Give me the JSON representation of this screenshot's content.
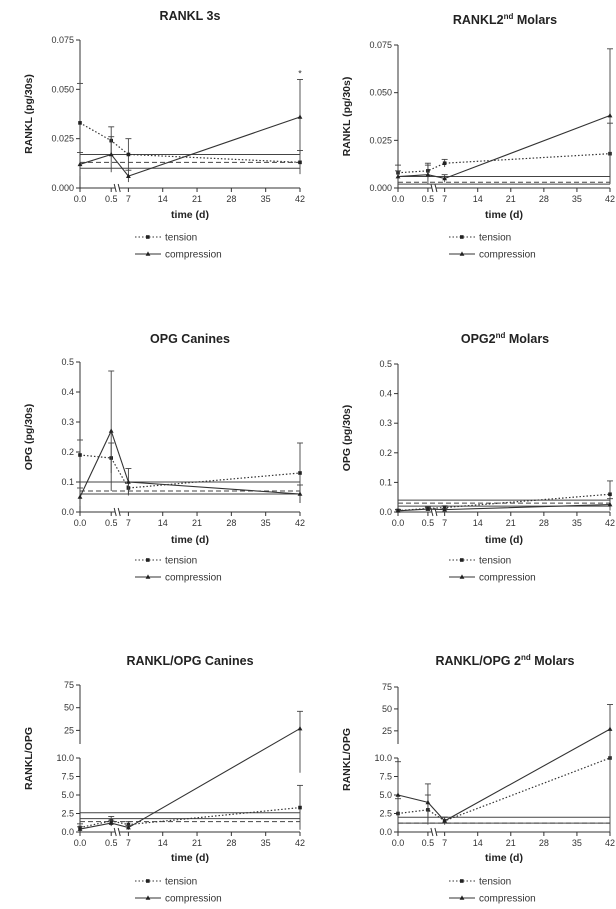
{
  "chart_data": [
    {
      "type": "line",
      "title": "RANKL 3s",
      "xlabel": "time (d)",
      "ylabel": "RANKL (pg/30s)",
      "ylim": [
        0,
        0.075
      ],
      "yticks": [
        "0.000",
        "0.025",
        "0.050",
        "0.075"
      ],
      "x": [
        0,
        0.5,
        7,
        42
      ],
      "xticks": [
        "0.0",
        "0.5",
        "7",
        "14",
        "21",
        "28",
        "35",
        "42"
      ],
      "legend": "below",
      "annotation": "*",
      "series": [
        {
          "name": "tension",
          "style": "dotted",
          "values": [
            0.033,
            0.024,
            0.017,
            0.013
          ],
          "errors": [
            0.02,
            0.007,
            0.008,
            0.006
          ],
          "baseline": 0.013,
          "baseline_style": "dashed"
        },
        {
          "name": "compression",
          "style": "solid",
          "values": [
            0.012,
            0.017,
            0.006,
            0.036
          ],
          "errors": [
            0.006,
            0.009,
            0.003,
            0.019
          ],
          "baseline": 0.017,
          "baseline_style": "solid",
          "baseline2": 0.01
        }
      ]
    },
    {
      "type": "line",
      "title": "RANKL2",
      "title_sup": "nd",
      "title_rest": " Molars",
      "xlabel": "time (d)",
      "ylabel": "RANKL (pg/30s)",
      "ylim": [
        0,
        0.075
      ],
      "yticks": [
        "0.000",
        "0.025",
        "0.050",
        "0.075"
      ],
      "x": [
        0,
        0.5,
        7,
        42
      ],
      "xticks": [
        "0.0",
        "0.5",
        "7",
        "14",
        "21",
        "28",
        "35",
        "42"
      ],
      "legend": "below",
      "series": [
        {
          "name": "tension",
          "style": "dotted",
          "values": [
            0.008,
            0.009,
            0.013,
            0.018
          ],
          "errors": [
            0.004,
            0.004,
            0.002,
            0.016
          ],
          "baseline": 0.003,
          "baseline_style": "dashed"
        },
        {
          "name": "compression",
          "style": "solid",
          "values": [
            0.006,
            0.007,
            0.005,
            0.038
          ],
          "errors": [
            0.003,
            0.005,
            0.002,
            0.035
          ],
          "baseline": 0.006,
          "baseline_style": "solid",
          "baseline2": 0.002
        }
      ]
    },
    {
      "type": "line",
      "title": "OPG Canines",
      "xlabel": "time (d)",
      "ylabel": "OPG (pg/30s)",
      "ylim": [
        0,
        0.5
      ],
      "yticks": [
        "0.0",
        "0.1",
        "0.2",
        "0.3",
        "0.4",
        "0.5"
      ],
      "x": [
        0,
        0.5,
        7,
        42
      ],
      "xticks": [
        "0.0",
        "0.5",
        "7",
        "14",
        "21",
        "28",
        "35",
        "42"
      ],
      "legend": "below",
      "series": [
        {
          "name": "tension",
          "style": "dotted",
          "values": [
            0.19,
            0.18,
            0.08,
            0.13
          ],
          "errors": [
            0.05,
            0.05,
            0.02,
            0.1
          ],
          "baseline": 0.07,
          "baseline_style": "dashed"
        },
        {
          "name": "compression",
          "style": "solid",
          "values": [
            0.05,
            0.27,
            0.1,
            0.06
          ],
          "errors": [
            0.03,
            0.2,
            0.045,
            0.03
          ],
          "baseline": 0.1,
          "baseline_style": "solid",
          "baseline2": 0.06
        }
      ]
    },
    {
      "type": "line",
      "title": "OPG2",
      "title_sup": "nd",
      "title_rest": " Molars",
      "xlabel": "time (d)",
      "ylabel": "OPG (pg/30s)",
      "ylim": [
        0,
        0.5
      ],
      "yticks": [
        "0.0",
        "0.1",
        "0.2",
        "0.3",
        "0.4",
        "0.5"
      ],
      "x": [
        0,
        0.5,
        7,
        42
      ],
      "xticks": [
        "0.0",
        "0.5",
        "7",
        "14",
        "21",
        "28",
        "35",
        "42"
      ],
      "legend": "below",
      "series": [
        {
          "name": "tension",
          "style": "dotted",
          "values": [
            0.005,
            0.012,
            0.015,
            0.06
          ],
          "errors": [
            0.004,
            0.005,
            0.006,
            0.045
          ],
          "baseline": 0.03,
          "baseline_style": "dashed"
        },
        {
          "name": "compression",
          "style": "solid",
          "values": [
            0.004,
            0.01,
            0.008,
            0.025
          ],
          "errors": [
            0.003,
            0.004,
            0.004,
            0.02
          ],
          "baseline": 0.04,
          "baseline_style": "solid",
          "baseline2": 0.02
        }
      ]
    },
    {
      "type": "line",
      "title": "RANKL/OPG  Canines",
      "xlabel": "time (d)",
      "ylabel": "RANKL/OPG",
      "broken_y": true,
      "ylim_lower": [
        0,
        10
      ],
      "ylim_upper": [
        10,
        75
      ],
      "yticks_lower": [
        "0.0",
        "2.5",
        "5.0",
        "7.5",
        "10.0"
      ],
      "yticks_upper": [
        "25",
        "50",
        "75"
      ],
      "x": [
        0,
        0.5,
        7,
        42
      ],
      "xticks": [
        "0.0",
        "0.5",
        "7",
        "14",
        "21",
        "28",
        "35",
        "42"
      ],
      "legend": "below",
      "series": [
        {
          "name": "tension",
          "style": "dotted",
          "values": [
            0.6,
            1.5,
            1.0,
            3.3
          ],
          "errors": [
            0.5,
            0.6,
            0.4,
            3.0
          ],
          "baseline": 1.4,
          "baseline_style": "dashed"
        },
        {
          "name": "compression",
          "style": "solid",
          "values": [
            0.4,
            1.2,
            0.6,
            27
          ],
          "errors": [
            0.3,
            0.4,
            0.3,
            19
          ],
          "baseline": 2.6,
          "baseline_style": "solid",
          "baseline2": 1.8
        }
      ]
    },
    {
      "type": "line",
      "title": "RANKL/OPG 2",
      "title_sup": "nd",
      "title_rest": " Molars",
      "xlabel": "time (d)",
      "ylabel": "RANKL/OPG",
      "broken_y": true,
      "ylim_lower": [
        0,
        10
      ],
      "ylim_upper": [
        10,
        75
      ],
      "yticks_lower": [
        "0.0",
        "2.5",
        "5.0",
        "7.5",
        "10.0"
      ],
      "yticks_upper": [
        "25",
        "50",
        "75"
      ],
      "x": [
        0,
        0.5,
        7,
        42
      ],
      "xticks": [
        "0.0",
        "0.5",
        "7",
        "14",
        "21",
        "28",
        "35",
        "42"
      ],
      "legend": "below",
      "series": [
        {
          "name": "tension",
          "style": "dotted",
          "values": [
            2.5,
            3.0,
            1.5,
            10
          ],
          "errors": [
            2.0,
            2.0,
            0.5,
            0
          ],
          "baseline": 1.2,
          "baseline_style": "dashed"
        },
        {
          "name": "compression",
          "style": "solid",
          "values": [
            5.0,
            4.0,
            1.5,
            27
          ],
          "errors": [
            4.5,
            2.5,
            0.5,
            28
          ],
          "baseline": 2.0,
          "baseline_style": "solid",
          "baseline2": 1.2
        }
      ]
    }
  ]
}
